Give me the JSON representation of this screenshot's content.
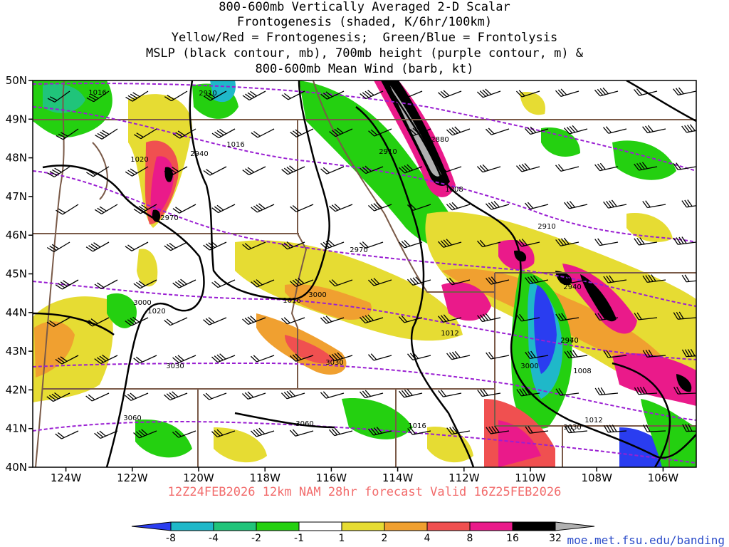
{
  "title_lines": [
    "800-600mb Vertically Averaged 2-D Scalar",
    "Frontogenesis (shaded, K/6hr/100km)",
    "Yellow/Red = Frontogenesis;  Green/Blue = Frontolysis",
    "MSLP (black contour, mb), 700mb height (purple contour, m) &",
    "800-600mb Mean Wind (barb, kt)"
  ],
  "valid_text": "12Z24FEB2026 12km NAM 28hr forecast Valid 16Z25FEB2026",
  "credit": "moe.met.fsu.edu/banding",
  "lat_labels": [
    "50N",
    "49N",
    "48N",
    "47N",
    "46N",
    "45N",
    "44N",
    "43N",
    "42N",
    "41N",
    "40N"
  ],
  "lon_labels": [
    "124W",
    "122W",
    "120W",
    "118W",
    "116W",
    "114W",
    "112W",
    "110W",
    "108W",
    "106W"
  ],
  "colorbar": {
    "colors": [
      "#2a3df0",
      "#1fb8c9",
      "#20c47a",
      "#24d010",
      "#ffffff",
      "#e6dc33",
      "#f0a030",
      "#f05050",
      "#ea1a8a",
      "#000000",
      "#b0b0b0"
    ],
    "labels": [
      "-8",
      "-4",
      "-2",
      "-1",
      "1",
      "2",
      "4",
      "8",
      "16",
      "32"
    ]
  },
  "colors": {
    "mslp": "#000000",
    "height": "#9a1fd2",
    "borders": "#7a5a48",
    "barbs": "#000000",
    "valid": "#f26b6b",
    "credit": "#2b4cc9"
  },
  "height_labels": [
    "2910",
    "2940",
    "2880",
    "2910",
    "2940",
    "2970",
    "2910",
    "2970",
    "2940",
    "3000",
    "3000",
    "2970",
    "3030",
    "3030",
    "3000",
    "3060",
    "3060",
    "3030"
  ],
  "mslp_labels": [
    "1016",
    "1020",
    "1016",
    "1008",
    "1020",
    "1016",
    "1012",
    "1008",
    "1016",
    "1012"
  ]
}
